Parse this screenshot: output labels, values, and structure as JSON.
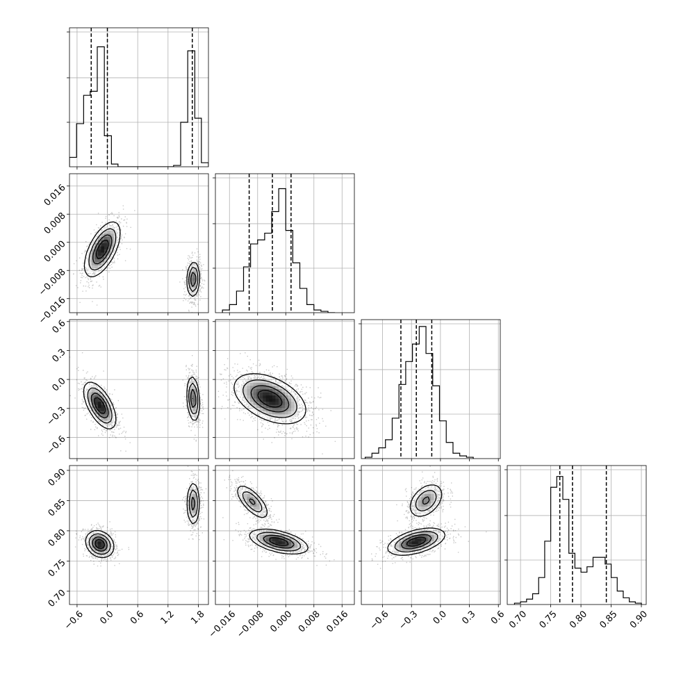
{
  "chart_data": {
    "type": "corner",
    "grid": true,
    "parameters": [
      {
        "range": [
          -0.75,
          2.0
        ],
        "ticks": [
          -0.6,
          0.0,
          0.6,
          1.2,
          1.8
        ],
        "tick_labels": [
          "−0.6",
          "0.0",
          "0.6",
          "1.2",
          "1.8"
        ],
        "quantiles": [
          -0.32,
          0.0,
          1.68
        ],
        "histogram": {
          "edges": [
            -0.75,
            -0.61,
            -0.47,
            -0.34,
            -0.2,
            -0.06,
            0.08,
            0.21,
            0.35,
            0.49,
            0.63,
            0.76,
            0.9,
            1.04,
            1.18,
            1.31,
            1.45,
            1.59,
            1.73,
            1.86,
            2.0
          ],
          "counts": [
            0.07,
            0.32,
            0.53,
            0.56,
            0.89,
            0.23,
            0.02,
            0.0,
            0.0,
            0.0,
            0.0,
            0.0,
            0.0,
            0.0,
            0.0,
            0.01,
            0.33,
            0.86,
            0.36,
            0.03
          ]
        }
      },
      {
        "range": [
          -0.02,
          0.0195
        ],
        "ticks": [
          -0.016,
          -0.008,
          0.0,
          0.008,
          0.016
        ],
        "tick_labels": [
          "−0.016",
          "−0.008",
          "0.000",
          "0.008",
          "0.016"
        ],
        "quantiles": [
          -0.0104,
          -0.0038,
          0.0015
        ],
        "histogram": {
          "edges": [
            -0.018,
            -0.016,
            -0.014,
            -0.012,
            -0.01,
            -0.008,
            -0.006,
            -0.004,
            -0.002,
            0.0,
            0.002,
            0.004,
            0.006,
            0.008,
            0.01,
            0.012,
            0.014
          ],
          "counts": [
            0.02,
            0.06,
            0.16,
            0.34,
            0.51,
            0.54,
            0.59,
            0.75,
            0.92,
            0.61,
            0.37,
            0.18,
            0.06,
            0.02,
            0.01,
            0.0
          ]
        }
      },
      {
        "range": [
          -0.82,
          0.62
        ],
        "ticks": [
          -0.6,
          -0.3,
          0.0,
          0.3,
          0.6
        ],
        "tick_labels": [
          "−0.6",
          "−0.3",
          "0.0",
          "0.3",
          "0.6"
        ],
        "quantiles": [
          -0.41,
          -0.25,
          -0.09
        ],
        "histogram": {
          "edges": [
            -0.78,
            -0.71,
            -0.64,
            -0.57,
            -0.5,
            -0.43,
            -0.36,
            -0.29,
            -0.22,
            -0.15,
            -0.08,
            -0.01,
            0.06,
            0.13,
            0.2,
            0.27,
            0.34
          ],
          "counts": [
            0.01,
            0.04,
            0.08,
            0.14,
            0.3,
            0.55,
            0.72,
            0.85,
            0.98,
            0.78,
            0.54,
            0.28,
            0.12,
            0.04,
            0.02,
            0.01
          ]
        }
      },
      {
        "range": [
          0.678,
          0.908
        ],
        "ticks": [
          0.7,
          0.75,
          0.8,
          0.85,
          0.9
        ],
        "tick_labels": [
          "0.70",
          "0.75",
          "0.80",
          "0.85",
          "0.90"
        ],
        "quantiles": [
          0.765,
          0.786,
          0.842
        ],
        "histogram": {
          "edges": [
            0.69,
            0.7,
            0.71,
            0.72,
            0.73,
            0.74,
            0.75,
            0.76,
            0.77,
            0.78,
            0.79,
            0.8,
            0.81,
            0.82,
            0.83,
            0.84,
            0.85,
            0.86,
            0.87,
            0.88,
            0.89,
            0.9
          ],
          "counts": [
            0.01,
            0.02,
            0.04,
            0.08,
            0.2,
            0.47,
            0.87,
            0.95,
            0.78,
            0.38,
            0.27,
            0.24,
            0.28,
            0.35,
            0.35,
            0.3,
            0.2,
            0.1,
            0.05,
            0.02,
            0.01
          ]
        }
      }
    ],
    "density_blobs": [
      {
        "i": 1,
        "j": 0,
        "blobs": [
          {
            "cx": -0.1,
            "cy": -0.002,
            "sx": 0.19,
            "sy": 0.0042,
            "rho": 0.6,
            "w": 0.55
          },
          {
            "cx": 1.7,
            "cy": -0.0105,
            "sx": 0.07,
            "sy": 0.0028,
            "rho": 0.1,
            "w": 0.45
          }
        ]
      },
      {
        "i": 2,
        "j": 0,
        "blobs": [
          {
            "cx": -0.15,
            "cy": -0.27,
            "sx": 0.17,
            "sy": 0.13,
            "rho": -0.6,
            "w": 0.55
          },
          {
            "cx": 1.7,
            "cy": -0.2,
            "sx": 0.07,
            "sy": 0.13,
            "rho": -0.2,
            "w": 0.45
          }
        ]
      },
      {
        "i": 3,
        "j": 0,
        "blobs": [
          {
            "cx": -0.15,
            "cy": 0.778,
            "sx": 0.15,
            "sy": 0.012,
            "rho": -0.2,
            "w": 0.58
          },
          {
            "cx": 1.7,
            "cy": 0.845,
            "sx": 0.07,
            "sy": 0.02,
            "rho": 0.0,
            "w": 0.42
          }
        ]
      },
      {
        "i": 2,
        "j": 1,
        "blobs": [
          {
            "cx": -0.0045,
            "cy": -0.2,
            "sx": 0.0055,
            "sy": 0.14,
            "rho": -0.45,
            "w": 1.0
          }
        ]
      },
      {
        "i": 3,
        "j": 1,
        "blobs": [
          {
            "cx": -0.0095,
            "cy": 0.848,
            "sx": 0.0026,
            "sy": 0.016,
            "rho": -0.7,
            "w": 0.4
          },
          {
            "cx": -0.002,
            "cy": 0.782,
            "sx": 0.0045,
            "sy": 0.011,
            "rho": -0.5,
            "w": 0.6
          }
        ]
      },
      {
        "i": 3,
        "j": 2,
        "blobs": [
          {
            "cx": -0.15,
            "cy": 0.85,
            "sx": 0.1,
            "sy": 0.016,
            "rho": 0.4,
            "w": 0.4
          },
          {
            "cx": -0.25,
            "cy": 0.782,
            "sx": 0.16,
            "sy": 0.012,
            "rho": 0.5,
            "w": 0.6
          }
        ]
      }
    ]
  }
}
